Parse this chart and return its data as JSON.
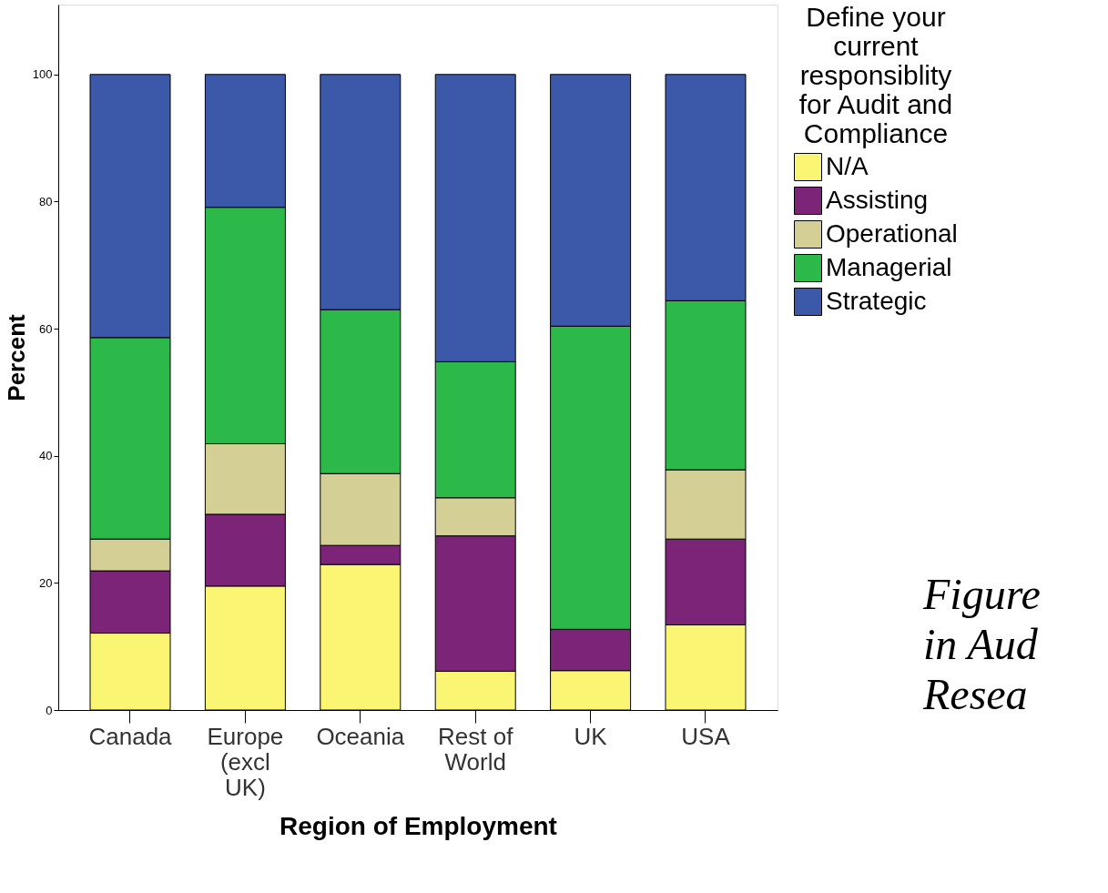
{
  "chart_data": {
    "type": "bar",
    "stacked": true,
    "xlabel": "Region of Employment",
    "ylabel": "Percent",
    "legend_title": "Define your current responsiblity for Audit and Compliance",
    "legend": "right",
    "categories": [
      "Canada",
      "Europe (excl UK)",
      "Oceania",
      "Rest of World",
      "UK",
      "USA"
    ],
    "series": [
      {
        "name": "N/A",
        "color": "#faf573",
        "values": [
          12.1,
          19.5,
          22.9,
          6.1,
          6.2,
          13.4
        ]
      },
      {
        "name": "Assisting",
        "color": "#7b2478",
        "values": [
          9.8,
          11.3,
          3.0,
          21.3,
          6.5,
          13.5
        ]
      },
      {
        "name": "Operational",
        "color": "#d4cf95",
        "values": [
          5.0,
          11.1,
          11.3,
          6.0,
          0.0,
          10.9
        ]
      },
      {
        "name": "Managerial",
        "color": "#2db84a",
        "values": [
          31.7,
          37.2,
          25.8,
          21.4,
          47.7,
          26.6
        ]
      },
      {
        "name": "Strategic",
        "color": "#3c58a8",
        "values": [
          41.4,
          20.9,
          37.0,
          45.2,
          39.6,
          35.6
        ]
      }
    ],
    "ylim": [
      0,
      111
    ],
    "yticks": [
      0,
      20,
      40,
      60,
      80,
      100
    ],
    "grid": false,
    "annotations": [
      "Figure",
      "in Aud",
      "Resea"
    ]
  }
}
